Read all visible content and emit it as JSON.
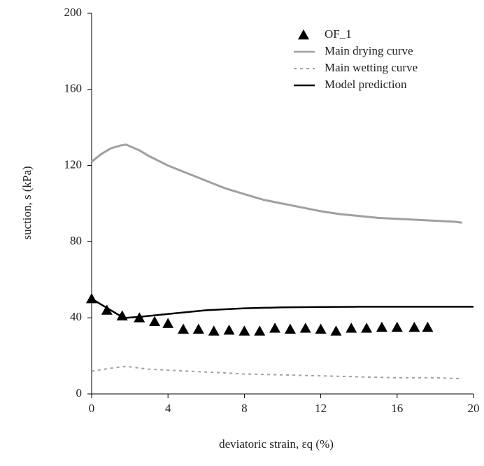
{
  "chart_data": {
    "type": "line",
    "xlabel": "deviatoric strain, εq (%)",
    "ylabel": "suction, s (kPa)",
    "xlim": [
      0,
      20
    ],
    "xticks": [
      0,
      4,
      8,
      12,
      16,
      20
    ],
    "ylim": [
      0,
      200
    ],
    "yticks": [
      0,
      40,
      80,
      120,
      160,
      200
    ],
    "legend": "upper right",
    "series": [
      {
        "name": "OF_1",
        "color": "#000000",
        "marker": "triangle",
        "x": [
          0,
          0.8,
          1.6,
          2.5,
          3.3,
          4.0,
          4.8,
          5.6,
          6.4,
          7.2,
          8.0,
          8.8,
          9.6,
          10.4,
          11.2,
          12.0,
          12.8,
          13.6,
          14.4,
          15.2,
          16.0,
          16.9,
          17.6
        ],
        "values": [
          50,
          44,
          41,
          40,
          38,
          37,
          34,
          34,
          33,
          33.5,
          33,
          33,
          34.5,
          34,
          34.5,
          34,
          33,
          34.5,
          34.5,
          35,
          35,
          35,
          35
        ]
      },
      {
        "name": "Main drying curve",
        "color": "#a0a0a0",
        "dash": false,
        "x": [
          0,
          0.5,
          1,
          1.5,
          1.8,
          2.5,
          3,
          4,
          5,
          6,
          7,
          8,
          9,
          10,
          11,
          12,
          13,
          14,
          15,
          16,
          17,
          18,
          19,
          19.4
        ],
        "values": [
          122,
          126,
          129,
          130.5,
          131,
          128,
          125,
          120,
          116,
          112,
          108,
          105,
          102,
          100,
          98,
          96,
          94.5,
          93.5,
          92.5,
          92,
          91.5,
          91,
          90.5,
          90
        ]
      },
      {
        "name": "Main wetting curve",
        "color": "#a0a0a0",
        "dash": true,
        "x": [
          0,
          1,
          1.8,
          3,
          4,
          6,
          8,
          10,
          12,
          14,
          16,
          18,
          19.4
        ],
        "values": [
          12,
          13.5,
          14.5,
          13,
          12.5,
          11.5,
          10.5,
          10,
          9.5,
          9,
          8.5,
          8.5,
          8
        ]
      },
      {
        "name": "Model prediction",
        "color": "#000000",
        "dash": false,
        "x": [
          0,
          0.5,
          1,
          1.5,
          1.8,
          2.5,
          4,
          6,
          8,
          10,
          12,
          14,
          16,
          18,
          20
        ],
        "values": [
          50,
          47,
          44,
          41,
          40,
          40.5,
          42,
          44,
          45,
          45.5,
          45.7,
          45.8,
          45.8,
          45.8,
          45.8
        ]
      }
    ]
  }
}
